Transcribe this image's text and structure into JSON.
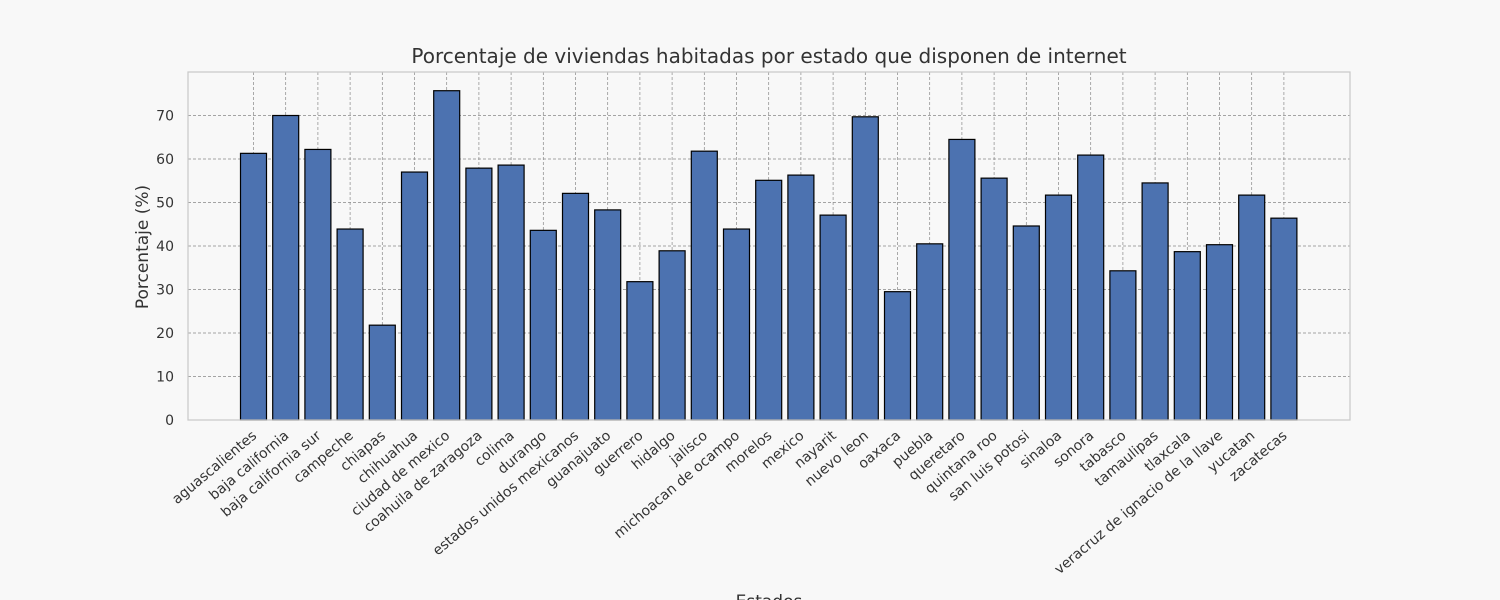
{
  "chart_data": {
    "type": "bar",
    "title": "Porcentaje de viviendas habitadas por estado que disponen de internet",
    "xlabel": "Estados",
    "ylabel": "Porcentaje (%)",
    "ylim": [
      0,
      80
    ],
    "yticks": [
      0,
      10,
      20,
      30,
      40,
      50,
      60,
      70
    ],
    "grid": true,
    "categories": [
      "aguascalientes",
      "baja california",
      "baja california sur",
      "campeche",
      "chiapas",
      "chihuahua",
      "ciudad de mexico",
      "coahuila de zaragoza",
      "colima",
      "durango",
      "estados unidos mexicanos",
      "guanajuato",
      "guerrero",
      "hidalgo",
      "jalisco",
      "michoacan de ocampo",
      "morelos",
      "mexico",
      "nayarit",
      "nuevo leon",
      "oaxaca",
      "puebla",
      "queretaro",
      "quintana roo",
      "san luis potosi",
      "sinaloa",
      "sonora",
      "tabasco",
      "tamaulipas",
      "tlaxcala",
      "veracruz de ignacio de la llave",
      "yucatan",
      "zacatecas"
    ],
    "values": [
      61.3,
      70.0,
      62.2,
      43.9,
      21.8,
      57.0,
      75.7,
      57.9,
      58.6,
      43.6,
      52.1,
      48.3,
      31.8,
      38.9,
      61.8,
      43.9,
      55.1,
      56.3,
      47.1,
      69.7,
      29.5,
      40.5,
      64.5,
      55.6,
      44.6,
      51.7,
      60.9,
      34.3,
      54.5,
      38.7,
      40.3,
      51.7,
      46.4
    ],
    "colors": {
      "bar": "#4c72b0",
      "bar_edge": "#000000",
      "grid": "#888888",
      "frame": "#c8c8c8",
      "text": "#333333",
      "plot_bg": "#f8f8f8"
    }
  }
}
